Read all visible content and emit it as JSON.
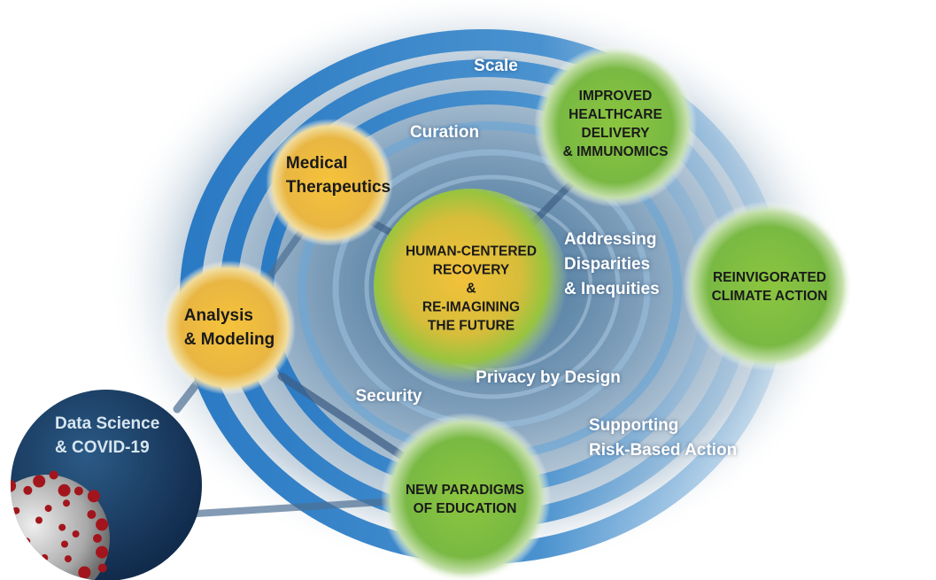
{
  "colors": {
    "ring_blue": "#2f7fc7",
    "ring_light": "#9cc2e2",
    "halo_center": "#3a6c93",
    "yellow_node": "#eab93c",
    "green_node": "#7fbf3f",
    "covid_navy": "#17375f",
    "virus_red": "#a3151c"
  },
  "rings": {
    "scale": "Scale",
    "curation": "Curation",
    "disparities": [
      "Addressing",
      "Disparities",
      "& Inequities"
    ],
    "privacy": "Privacy by Design",
    "security": "Security",
    "risk": [
      "Supporting",
      "Risk-Based Action"
    ]
  },
  "nodes": {
    "center": [
      "HUMAN-CENTERED",
      "RECOVERY",
      "&",
      "RE-IMAGINING",
      "THE FUTURE"
    ],
    "healthcare": [
      "IMPROVED",
      "HEALTHCARE",
      "DELIVERY",
      "& IMMUNOMICS"
    ],
    "climate": [
      "REINVIGORATED",
      "CLIMATE ACTION"
    ],
    "education": [
      "NEW PARADIGMS",
      "OF EDUCATION"
    ],
    "therapeutics": [
      "Medical",
      "Therapeutics"
    ],
    "analysis": [
      "Analysis",
      "& Modeling"
    ]
  },
  "covid": [
    "Data Science",
    "& COVID-19"
  ]
}
